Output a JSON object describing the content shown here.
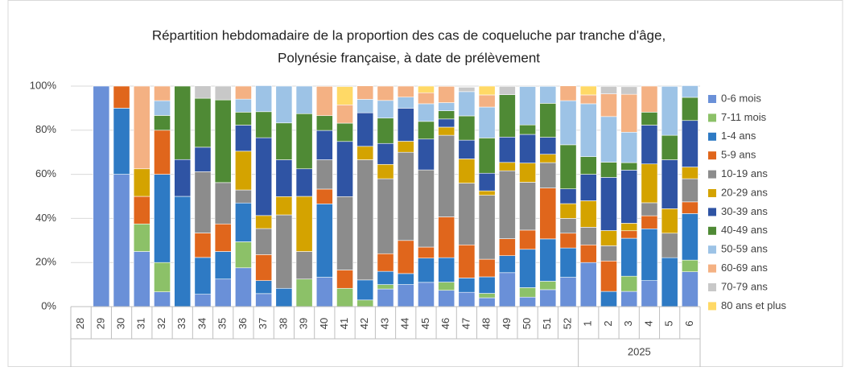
{
  "chart_data": {
    "type": "stacked_bar_100",
    "title": "Répartition hebdomadaire de la proportion des cas de coqueluche par tranche d'âge,",
    "subtitle": "Polynésie française, à date de prélèvement",
    "categories": [
      "28",
      "29",
      "30",
      "31",
      "32",
      "33",
      "34",
      "35",
      "36",
      "37",
      "38",
      "39",
      "40",
      "41",
      "42",
      "43",
      "44",
      "45",
      "46",
      "47",
      "48",
      "49",
      "50",
      "51",
      "52",
      "1",
      "2",
      "3",
      "4",
      "5",
      "6"
    ],
    "year_label": "2025",
    "ylim": [
      0,
      100
    ],
    "yticks": [
      {
        "value": 0,
        "label": "0%"
      },
      {
        "value": 20,
        "label": "20%"
      },
      {
        "value": 40,
        "label": "40%"
      },
      {
        "value": 60,
        "label": "60%"
      },
      {
        "value": 80,
        "label": "80%"
      },
      {
        "value": 100,
        "label": "100%"
      }
    ],
    "grid": true,
    "legend": "right",
    "series": [
      {
        "name": "0-6 mois",
        "color": "#6a90d8",
        "values": [
          0,
          100,
          60,
          25,
          6.7,
          0,
          5.6,
          12.5,
          17.6,
          5.9,
          0,
          0,
          13.3,
          0,
          0,
          8,
          10,
          11,
          7.4,
          6.5,
          4,
          15.4,
          4.3,
          7.7,
          13.3,
          20,
          0,
          6.9,
          11.8,
          0,
          15.8
        ]
      },
      {
        "name": "7-11 mois",
        "color": "#8cc168",
        "values": [
          0,
          0,
          0,
          12.5,
          13.3,
          0,
          0,
          0,
          11.8,
          0,
          0,
          12.5,
          0,
          8.3,
          3,
          2,
          0,
          0,
          3.7,
          0,
          2,
          0,
          4.3,
          3.8,
          0,
          0,
          0,
          6.9,
          0,
          0,
          5.3
        ]
      },
      {
        "name": "1-4 ans",
        "color": "#2e7ac4",
        "values": [
          0,
          0,
          30,
          0,
          40,
          50,
          16.7,
          12.5,
          17.6,
          5.9,
          8.3,
          0,
          33.3,
          0,
          9.1,
          6,
          5,
          11,
          11.1,
          6.5,
          7.5,
          7.7,
          17.4,
          19.2,
          13.3,
          0,
          6.9,
          17.2,
          23.5,
          22.2,
          21.1
        ]
      },
      {
        "name": "5-9 ans",
        "color": "#e0661c",
        "values": [
          0,
          0,
          10,
          12.5,
          20,
          0,
          11.1,
          12.5,
          0,
          11.8,
          0,
          0,
          6.7,
          8.3,
          0,
          8,
          15,
          5,
          18.5,
          15,
          8,
          7.7,
          8.7,
          23.1,
          6.7,
          8,
          13.8,
          3.4,
          5.9,
          0,
          5.3
        ]
      },
      {
        "name": "10-19 ans",
        "color": "#8c8c8c",
        "values": [
          0,
          0,
          0,
          0,
          0,
          0,
          27.8,
          18.75,
          5.9,
          11.8,
          33.3,
          12.5,
          13.3,
          33.3,
          54.5,
          34,
          40,
          35,
          37,
          28,
          29,
          30.8,
          21.7,
          11.5,
          6.7,
          8,
          6.9,
          0,
          5.9,
          11.1,
          10.5
        ]
      },
      {
        "name": "20-29 ans",
        "color": "#d4a300",
        "values": [
          0,
          0,
          0,
          12.5,
          0,
          0,
          0,
          0,
          17.6,
          5.9,
          8.3,
          25,
          0,
          0,
          6.1,
          6.5,
          5,
          0,
          3.7,
          11,
          2,
          3.8,
          8.7,
          3.8,
          6.7,
          12,
          6.9,
          3.4,
          17.6,
          11.1,
          5.3
        ]
      },
      {
        "name": "30-39 ans",
        "color": "#2f54a4",
        "values": [
          0,
          0,
          0,
          0,
          0,
          16.7,
          11.1,
          0,
          11.8,
          35.3,
          16.7,
          12.5,
          13.3,
          25,
          15.2,
          9.5,
          15,
          14,
          3.7,
          8.5,
          8,
          11.5,
          13,
          7.7,
          6.7,
          12,
          24.1,
          24.1,
          17.6,
          22.2,
          21.1
        ]
      },
      {
        "name": "40-49 ans",
        "color": "#4f8a35",
        "values": [
          0,
          0,
          0,
          0,
          6.7,
          33.3,
          22.2,
          37.5,
          5.9,
          11.8,
          16.7,
          25,
          6.7,
          8.3,
          0,
          11.5,
          0,
          8,
          3.7,
          11,
          16,
          19.2,
          4.3,
          15.4,
          20,
          8,
          6.9,
          3.4,
          5.9,
          11.1,
          10.5
        ]
      },
      {
        "name": "50-59 ans",
        "color": "#9dc3e6",
        "values": [
          0,
          0,
          0,
          0,
          6.7,
          0,
          0,
          0,
          5.9,
          11.8,
          16.7,
          12.5,
          0,
          0,
          6.1,
          8,
          5,
          8,
          3.7,
          11,
          14,
          0,
          17.4,
          7.7,
          20,
          24,
          20.7,
          13.8,
          0,
          22.2,
          5.3
        ]
      },
      {
        "name": "60-69 ans",
        "color": "#f4b183",
        "values": [
          0,
          0,
          0,
          37.5,
          6.6,
          0,
          0,
          0,
          5.9,
          0,
          0,
          0,
          13.3,
          8.3,
          6.1,
          6.5,
          5,
          5,
          7.4,
          0,
          5.5,
          0,
          0,
          0,
          6.7,
          4,
          10.3,
          17.2,
          11.8,
          0,
          0
        ]
      },
      {
        "name": "70-79 ans",
        "color": "#c8c8c8",
        "values": [
          0,
          0,
          0,
          0,
          0,
          0,
          5.6,
          6.25,
          0,
          0,
          0,
          0,
          0,
          0,
          0,
          0,
          0,
          0,
          0,
          2,
          0,
          3.8,
          0,
          0,
          0,
          0,
          3.4,
          3.4,
          0,
          0,
          0
        ]
      },
      {
        "name": "80 ans et plus",
        "color": "#ffd966",
        "values": [
          0,
          0,
          0,
          0,
          0,
          0,
          0,
          0,
          0,
          0,
          0,
          0,
          0,
          8.3,
          0,
          0,
          0,
          3,
          0,
          0,
          4,
          0,
          0,
          0,
          0,
          4,
          0,
          0,
          0,
          0,
          0
        ]
      }
    ]
  }
}
